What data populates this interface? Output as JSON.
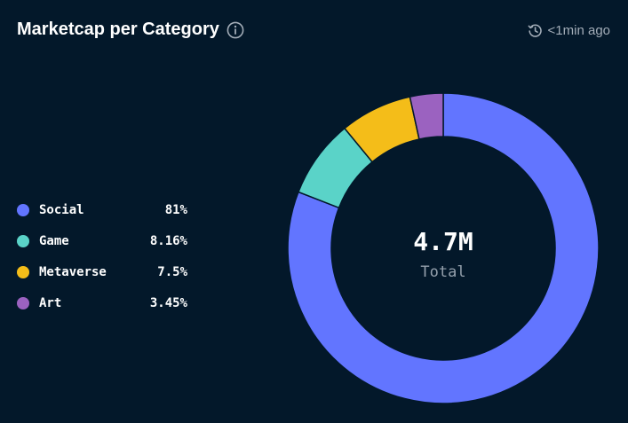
{
  "header": {
    "title": "Marketcap per Category",
    "updated": "<1min ago",
    "info_icon": "info-icon",
    "clock_icon": "clock-history-icon"
  },
  "colors": {
    "background": "#03182a",
    "social": "#6275ff",
    "game": "#5ad3c8",
    "metaverse": "#f4bd19",
    "art": "#9b62c0"
  },
  "center": {
    "value": "4.7M",
    "label": "Total"
  },
  "legend": [
    {
      "label": "Social",
      "value": "81%",
      "color": "#6275ff"
    },
    {
      "label": "Game",
      "value": "8.16%",
      "color": "#5ad3c8"
    },
    {
      "label": "Metaverse",
      "value": "7.5%",
      "color": "#f4bd19"
    },
    {
      "label": "Art",
      "value": "3.45%",
      "color": "#9b62c0"
    }
  ],
  "chart_data": {
    "type": "pie",
    "title": "Marketcap per Category",
    "categories": [
      "Social",
      "Game",
      "Metaverse",
      "Art"
    ],
    "values": [
      81,
      8.16,
      7.5,
      3.45
    ],
    "colors": [
      "#6275ff",
      "#5ad3c8",
      "#f4bd19",
      "#9b62c0"
    ],
    "donut": true,
    "center_text": "4.7M",
    "center_subtext": "Total",
    "legend_placement": "left"
  }
}
